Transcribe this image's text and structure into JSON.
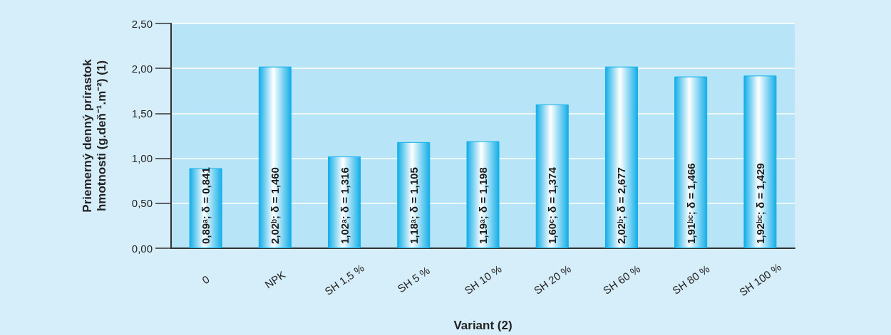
{
  "chart_data": {
    "type": "bar",
    "xlabel": "Variant (2)",
    "ylabel": "Priemerný denný prírastok hmotnosti (g.deň⁻¹.m⁻²) (1)",
    "categories": [
      "0",
      "NPK",
      "SH 1,5 %",
      "SH 5 %",
      "SH 10 %",
      "SH 20 %",
      "SH 60 %",
      "SH 80 %",
      "SH 100 %"
    ],
    "values": [
      0.89,
      2.02,
      1.02,
      1.18,
      1.19,
      1.6,
      2.02,
      1.91,
      1.92
    ],
    "value_labels": [
      "0,89ᵃ; δ = 0,841",
      "2,02ᵇ; δ = 1,460",
      "1,02ᵃ; δ = 1,316",
      "1,18ᵃ; δ = 1,105",
      "1,19ᵃ; δ = 1,198",
      "1,60ᶜ; δ = 1,374",
      "2,02ᵇ; δ = 2,677",
      "1,91ᵇᶜ; δ = 1,466",
      "1,92ᵇᶜ; δ = 1,429"
    ],
    "color": "#12aee8",
    "ylim": [
      0,
      2.5
    ],
    "yticks": [
      {
        "value": 0,
        "label": "0,00"
      },
      {
        "value": 0.5,
        "label": "0,50"
      },
      {
        "value": 1,
        "label": "1,00"
      },
      {
        "value": 1.5,
        "label": "1,50"
      },
      {
        "value": 2,
        "label": "2,00"
      },
      {
        "value": 2.5,
        "label": "2,50"
      }
    ],
    "grid": "y"
  }
}
